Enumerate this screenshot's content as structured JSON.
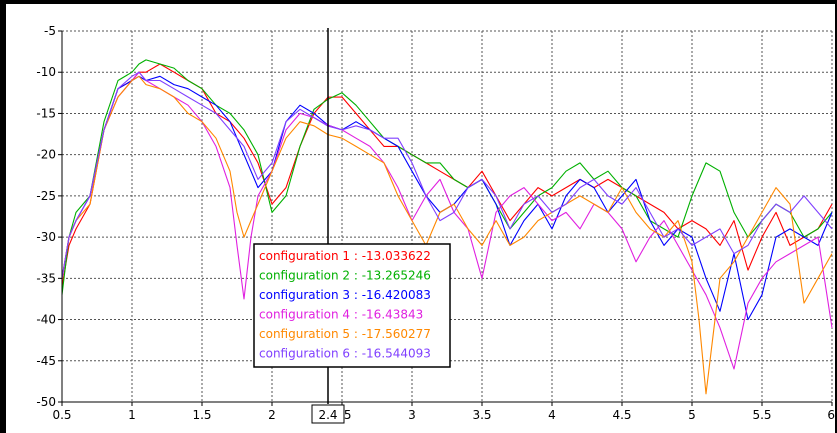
{
  "chart_data": {
    "type": "line",
    "title": "",
    "xlabel": "",
    "ylabel": "",
    "xlim": [
      0.5,
      6
    ],
    "ylim": [
      -50,
      -5
    ],
    "grid": true,
    "x_ticks": [
      "0.5",
      "1",
      "1.5",
      "2",
      "2.5",
      "3",
      "3.5",
      "4",
      "4.5",
      "5",
      "5.5",
      "6"
    ],
    "y_ticks": [
      "-5",
      "-10",
      "-15",
      "-20",
      "-25",
      "-30",
      "-35",
      "-40",
      "-45",
      "-50"
    ],
    "cursor": {
      "x": 2.4,
      "label": "2.4"
    },
    "series": [
      {
        "name": "configuration 1",
        "color": "#ff0000",
        "cursor_value": "-13.033622",
        "x": [
          0.5,
          0.55,
          0.6,
          0.7,
          0.8,
          0.9,
          1.0,
          1.05,
          1.1,
          1.2,
          1.3,
          1.4,
          1.5,
          1.6,
          1.7,
          1.8,
          1.9,
          2.0,
          2.1,
          2.2,
          2.3,
          2.4,
          2.5,
          2.6,
          2.7,
          2.8,
          2.9,
          3.0,
          3.1,
          3.2,
          3.3,
          3.4,
          3.5,
          3.6,
          3.7,
          3.8,
          3.9,
          4.0,
          4.1,
          4.2,
          4.3,
          4.4,
          4.5,
          4.6,
          4.7,
          4.8,
          4.9,
          5.0,
          5.1,
          5.2,
          5.3,
          5.4,
          5.5,
          5.6,
          5.7,
          5.8,
          5.9,
          6.0
        ],
        "y": [
          -36,
          -31,
          -29,
          -26,
          -17,
          -12,
          -11,
          -10,
          -10,
          -9,
          -10,
          -11,
          -12,
          -15,
          -16,
          -18,
          -21,
          -26,
          -24,
          -19,
          -15,
          -13.03,
          -13,
          -15,
          -17,
          -19,
          -19,
          -20,
          -21,
          -22,
          -23,
          -24,
          -22,
          -25,
          -28,
          -26,
          -24,
          -25,
          -24,
          -23,
          -24,
          -23,
          -24,
          -25,
          -26,
          -27,
          -29,
          -28,
          -29,
          -31,
          -28,
          -34,
          -30,
          -27,
          -31,
          -30,
          -29,
          -26
        ]
      },
      {
        "name": "configuration 2",
        "color": "#00b000",
        "cursor_value": "-13.265246",
        "x": [
          0.5,
          0.55,
          0.6,
          0.7,
          0.8,
          0.9,
          1.0,
          1.05,
          1.1,
          1.2,
          1.3,
          1.4,
          1.5,
          1.6,
          1.7,
          1.8,
          1.9,
          2.0,
          2.1,
          2.2,
          2.3,
          2.4,
          2.5,
          2.6,
          2.7,
          2.8,
          2.9,
          3.0,
          3.1,
          3.2,
          3.3,
          3.4,
          3.5,
          3.6,
          3.7,
          3.8,
          3.9,
          4.0,
          4.1,
          4.2,
          4.3,
          4.4,
          4.5,
          4.6,
          4.7,
          4.8,
          4.9,
          5.0,
          5.1,
          5.2,
          5.3,
          5.4,
          5.5,
          5.6,
          5.7,
          5.8,
          5.9,
          6.0
        ],
        "y": [
          -37,
          -30,
          -27,
          -25,
          -16,
          -11,
          -10,
          -9,
          -8.5,
          -9,
          -9.5,
          -11,
          -12,
          -14,
          -15,
          -17,
          -20,
          -27,
          -25,
          -19,
          -14.5,
          -13.27,
          -12.5,
          -14,
          -16,
          -18,
          -19,
          -20,
          -21,
          -21,
          -23,
          -24,
          -23,
          -26,
          -29,
          -27,
          -25,
          -24,
          -22,
          -21,
          -23,
          -22,
          -24,
          -25,
          -28,
          -29,
          -30,
          -25,
          -21,
          -22,
          -27,
          -30,
          -28,
          -26,
          -27,
          -30,
          -29,
          -27
        ]
      },
      {
        "name": "configuration 3",
        "color": "#0000ff",
        "cursor_value": "-16.420083",
        "x": [
          0.5,
          0.55,
          0.6,
          0.7,
          0.8,
          0.9,
          1.0,
          1.05,
          1.1,
          1.2,
          1.3,
          1.4,
          1.5,
          1.6,
          1.7,
          1.8,
          1.9,
          2.0,
          2.1,
          2.2,
          2.3,
          2.4,
          2.5,
          2.6,
          2.7,
          2.8,
          2.9,
          3.0,
          3.1,
          3.2,
          3.3,
          3.4,
          3.5,
          3.6,
          3.7,
          3.8,
          3.9,
          4.0,
          4.1,
          4.2,
          4.3,
          4.4,
          4.5,
          4.6,
          4.7,
          4.8,
          4.9,
          5.0,
          5.1,
          5.2,
          5.3,
          5.4,
          5.5,
          5.6,
          5.7,
          5.8,
          5.9,
          6.0
        ],
        "y": [
          -35,
          -30,
          -28,
          -25,
          -17,
          -12,
          -11,
          -10.5,
          -11,
          -10.5,
          -11.5,
          -12,
          -13,
          -14,
          -16,
          -20,
          -24,
          -22,
          -16,
          -14,
          -15,
          -16.42,
          -17,
          -16,
          -17,
          -18,
          -19,
          -22,
          -25,
          -27,
          -26,
          -24,
          -23,
          -26,
          -31,
          -28,
          -26,
          -29,
          -25,
          -23,
          -24,
          -27,
          -25,
          -23,
          -28,
          -31,
          -29,
          -30,
          -35,
          -39,
          -32,
          -40,
          -37,
          -30,
          -29,
          -30,
          -31,
          -27
        ]
      },
      {
        "name": "configuration 4",
        "color": "#e020e0",
        "cursor_value": "-16.43843",
        "x": [
          0.5,
          0.55,
          0.6,
          0.7,
          0.8,
          0.9,
          1.0,
          1.05,
          1.1,
          1.2,
          1.3,
          1.4,
          1.5,
          1.6,
          1.7,
          1.75,
          1.8,
          1.85,
          1.9,
          2.0,
          2.1,
          2.2,
          2.3,
          2.4,
          2.5,
          2.6,
          2.7,
          2.8,
          2.9,
          3.0,
          3.1,
          3.2,
          3.3,
          3.4,
          3.5,
          3.6,
          3.7,
          3.8,
          3.9,
          4.0,
          4.1,
          4.2,
          4.3,
          4.4,
          4.5,
          4.6,
          4.7,
          4.8,
          4.9,
          5.0,
          5.1,
          5.2,
          5.3,
          5.4,
          5.5,
          5.6,
          5.7,
          5.8,
          5.9,
          6.0
        ],
        "y": [
          -35,
          -30,
          -28,
          -25,
          -17,
          -13,
          -11,
          -10,
          -11,
          -12,
          -13,
          -14,
          -16,
          -19,
          -24,
          -31,
          -37.5,
          -30,
          -25,
          -22,
          -17,
          -15,
          -15.5,
          -16.44,
          -17,
          -18,
          -19,
          -21,
          -24,
          -28,
          -25,
          -23,
          -27,
          -29,
          -35,
          -27,
          -25,
          -24,
          -26,
          -28,
          -27,
          -29,
          -26,
          -27,
          -29,
          -33,
          -30,
          -28,
          -31,
          -34,
          -37,
          -41,
          -46,
          -38,
          -35,
          -33,
          -32,
          -31,
          -30,
          -41
        ]
      },
      {
        "name": "configuration 5",
        "color": "#ff8800",
        "cursor_value": "-17.560277",
        "x": [
          0.5,
          0.55,
          0.6,
          0.7,
          0.8,
          0.9,
          1.0,
          1.05,
          1.1,
          1.2,
          1.3,
          1.4,
          1.5,
          1.6,
          1.7,
          1.75,
          1.8,
          1.9,
          2.0,
          2.1,
          2.2,
          2.3,
          2.4,
          2.5,
          2.6,
          2.7,
          2.8,
          2.9,
          3.0,
          3.1,
          3.2,
          3.3,
          3.4,
          3.5,
          3.6,
          3.7,
          3.8,
          3.9,
          4.0,
          4.1,
          4.2,
          4.3,
          4.4,
          4.5,
          4.6,
          4.7,
          4.8,
          4.9,
          5.0,
          5.05,
          5.1,
          5.15,
          5.2,
          5.3,
          5.4,
          5.5,
          5.6,
          5.7,
          5.8,
          5.9,
          6.0
        ],
        "y": [
          -35,
          -30,
          -28,
          -26,
          -17,
          -13,
          -11,
          -10.5,
          -11.5,
          -12,
          -13,
          -15,
          -16,
          -18,
          -22,
          -27,
          -30,
          -26,
          -22,
          -18,
          -16,
          -16.5,
          -17.56,
          -18,
          -19,
          -20,
          -21,
          -25,
          -28,
          -31,
          -27,
          -26,
          -29,
          -31,
          -28,
          -31,
          -30,
          -28,
          -27,
          -26,
          -25,
          -26,
          -27,
          -24,
          -27,
          -29,
          -30,
          -28,
          -33,
          -40,
          -49,
          -42,
          -35,
          -33,
          -30,
          -27,
          -24,
          -26,
          -38,
          -35,
          -32
        ]
      },
      {
        "name": "configuration 6",
        "color": "#8040ff",
        "cursor_value": "-16.544093",
        "x": [
          0.5,
          0.55,
          0.6,
          0.7,
          0.8,
          0.9,
          1.0,
          1.05,
          1.1,
          1.2,
          1.3,
          1.4,
          1.5,
          1.6,
          1.7,
          1.8,
          1.9,
          2.0,
          2.1,
          2.2,
          2.3,
          2.4,
          2.5,
          2.6,
          2.7,
          2.8,
          2.9,
          3.0,
          3.1,
          3.2,
          3.3,
          3.4,
          3.5,
          3.6,
          3.7,
          3.8,
          3.9,
          4.0,
          4.1,
          4.2,
          4.3,
          4.4,
          4.5,
          4.6,
          4.7,
          4.8,
          4.9,
          5.0,
          5.1,
          5.2,
          5.3,
          5.4,
          5.5,
          5.6,
          5.7,
          5.8,
          5.9,
          6.0
        ],
        "y": [
          -35,
          -30,
          -28,
          -25,
          -17,
          -12,
          -10.5,
          -10,
          -11,
          -11,
          -12,
          -13,
          -14,
          -15,
          -17,
          -19,
          -23,
          -21,
          -16,
          -14.5,
          -15.5,
          -16.54,
          -17,
          -16.5,
          -17,
          -18,
          -18,
          -21,
          -25,
          -28,
          -27,
          -24,
          -23,
          -25,
          -29,
          -26,
          -25,
          -27,
          -26,
          -24,
          -23,
          -25,
          -26,
          -24,
          -27,
          -30,
          -29,
          -31,
          -30,
          -29,
          -32,
          -31,
          -28,
          -26,
          -27,
          -25,
          -27,
          -29
        ]
      }
    ]
  }
}
